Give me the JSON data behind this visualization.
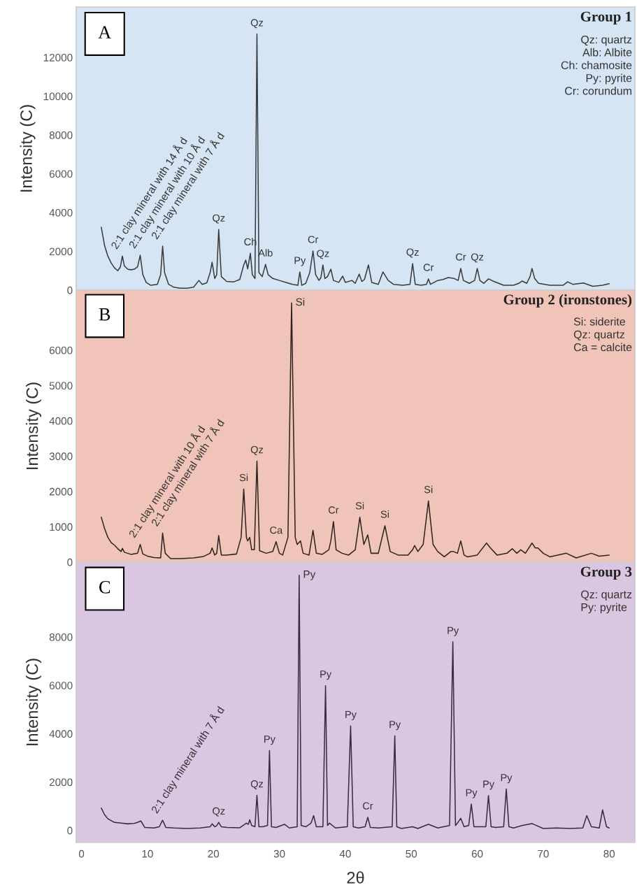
{
  "chart_data": [
    {
      "type": "line",
      "title": "Group 1",
      "ylabel": "Intensity (C)",
      "xlim": [
        -0.8,
        83.9
      ],
      "ylim": [
        0,
        14600
      ],
      "yticks": [
        0,
        2000,
        4000,
        6000,
        8000,
        10000,
        12000
      ],
      "tick_labels": "y",
      "grid": false,
      "x": [
        3.0,
        3.5,
        4,
        4.5,
        5,
        5.5,
        5.9,
        6.2,
        6.5,
        7,
        7.5,
        8,
        8.5,
        8.9,
        9.3,
        9.8,
        10.5,
        11.5,
        12,
        12.3,
        12.6,
        13.2,
        14,
        15,
        16,
        17,
        17.8,
        18.3,
        19,
        19.5,
        19.8,
        20.2,
        20.5,
        20.8,
        21.2,
        22,
        23,
        24,
        24.6,
        24.9,
        25.2,
        25.6,
        25.9,
        26.3,
        26.6,
        26.9,
        27.4,
        27.9,
        28.3,
        29,
        30,
        31,
        32,
        32.8,
        33.1,
        33.4,
        34,
        34.6,
        35.1,
        35.5,
        36,
        36.3,
        36.6,
        36.9,
        37.3,
        37.8,
        38.2,
        39,
        39.6,
        40,
        41,
        41.5,
        42.1,
        42.5,
        42.9,
        43.5,
        44,
        45,
        45.7,
        46.5,
        47.3,
        48.7,
        49.8,
        50.2,
        50.6,
        51.5,
        52.3,
        52.6,
        52.9,
        54,
        54.8,
        55.6,
        56.5,
        57.1,
        57.5,
        57.9,
        58.8,
        59.6,
        60.0,
        60.4,
        61,
        61.7,
        62.5,
        64,
        65.5,
        66.3,
        66.8,
        67.5,
        68.0,
        68.3,
        68.7,
        69.3,
        71,
        73,
        73.7,
        74.5,
        76.1,
        77.5,
        79,
        80
      ],
      "series": [
        {
          "color": "#3a3a3a",
          "values": [
            3240,
            2300,
            1750,
            1400,
            1150,
            1000,
            1200,
            1760,
            1250,
            1080,
            1050,
            1080,
            1200,
            1800,
            800,
            400,
            250,
            300,
            800,
            2270,
            900,
            300,
            150,
            100,
            100,
            150,
            500,
            300,
            380,
            900,
            1440,
            600,
            800,
            3130,
            700,
            450,
            420,
            550,
            1300,
            1550,
            1100,
            1900,
            800,
            600,
            13200,
            900,
            700,
            1330,
            800,
            600,
            500,
            400,
            300,
            250,
            940,
            250,
            350,
            900,
            2020,
            800,
            500,
            650,
            1300,
            600,
            700,
            1080,
            500,
            400,
            720,
            400,
            500,
            350,
            830,
            450,
            550,
            1300,
            400,
            300,
            940,
            500,
            300,
            250,
            300,
            1370,
            300,
            250,
            300,
            580,
            300,
            500,
            550,
            650,
            600,
            500,
            1120,
            500,
            350,
            500,
            1120,
            500,
            350,
            580,
            450,
            250,
            250,
            350,
            470,
            350,
            700,
            1120,
            600,
            350,
            250,
            250,
            430,
            300,
            370,
            200,
            250,
            330
          ]
        }
      ],
      "annotations": [
        "A",
        "Qz: quartz\nAlb: Albite\nCh: chamosite\nPy: pyrite\nCr: corundum",
        {
          "text": "2:1 clay mineral with 14 Å d",
          "x": 6.2,
          "y": 1760
        },
        {
          "text": "2:1 clay mineral with 10 Å d",
          "x": 8.9,
          "y": 1800
        },
        {
          "text": "2:1 clay mineral with 7 Å d",
          "x": 12.3,
          "y": 2270
        },
        {
          "text": "Qz",
          "x": 20.8,
          "y": 3130
        },
        {
          "text": "Ch",
          "x": 25.6,
          "y": 1900
        },
        {
          "text": "Qz",
          "x": 26.6,
          "y": 13200
        },
        {
          "text": "Alb",
          "x": 27.9,
          "y": 1330
        },
        {
          "text": "Py",
          "x": 33.1,
          "y": 940
        },
        {
          "text": "Cr",
          "x": 35.1,
          "y": 2020
        },
        {
          "text": "Qz",
          "x": 36.6,
          "y": 1300
        },
        {
          "text": "Qz",
          "x": 50.2,
          "y": 1370
        },
        {
          "text": "Cr",
          "x": 52.6,
          "y": 580
        },
        {
          "text": "Cr",
          "x": 57.5,
          "y": 1120
        },
        {
          "text": "Qz",
          "x": 60.0,
          "y": 1120
        }
      ]
    },
    {
      "type": "line",
      "title": "Group 2 (ironstones)",
      "ylabel": "Intensity (C)",
      "xlim": [
        -0.8,
        83.9
      ],
      "ylim": [
        0,
        7700
      ],
      "yticks": [
        0,
        1000,
        2000,
        3000,
        4000,
        5000,
        6000
      ],
      "tick_labels": "y",
      "grid": false,
      "x": [
        3.0,
        3.5,
        4,
        4.5,
        5,
        5.5,
        6,
        6.2,
        6.5,
        7.5,
        8.5,
        8.9,
        9.3,
        10,
        11,
        12,
        12.3,
        12.7,
        13.5,
        15,
        17,
        18.5,
        19.5,
        19.8,
        20.2,
        20.5,
        20.8,
        21.2,
        22,
        23.5,
        24.2,
        24.6,
        25,
        25.2,
        25.5,
        25.8,
        26.2,
        26.6,
        27,
        28,
        29,
        29.5,
        30,
        30.5,
        31.3,
        31.85,
        32.4,
        32.7,
        33.2,
        33.6,
        34.5,
        35.1,
        35.6,
        36.5,
        37.5,
        37.8,
        38.2,
        38.6,
        39.5,
        40.5,
        41.5,
        42.2,
        42.8,
        43.4,
        43.9,
        45,
        46.0,
        46.8,
        48,
        49.5,
        50.2,
        50.5,
        51,
        51.8,
        52.6,
        53.3,
        54,
        55,
        56,
        56.4,
        57,
        57.5,
        58,
        58.5,
        60,
        61.4,
        62,
        63,
        64.5,
        65.3,
        66,
        66.6,
        67.3,
        68.3,
        68.8,
        69.2,
        70,
        71,
        73.5,
        75,
        77.3,
        78.5,
        80
      ],
      "series": [
        {
          "color": "#2e2420",
          "values": [
            1270,
            950,
            700,
            550,
            480,
            380,
            300,
            390,
            280,
            220,
            250,
            500,
            230,
            170,
            130,
            120,
            820,
            250,
            100,
            100,
            120,
            160,
            250,
            400,
            200,
            250,
            750,
            200,
            200,
            230,
            700,
            2070,
            700,
            600,
            700,
            350,
            350,
            2860,
            320,
            250,
            300,
            580,
            250,
            200,
            700,
            7340,
            700,
            500,
            600,
            250,
            200,
            900,
            250,
            220,
            350,
            600,
            1150,
            350,
            250,
            200,
            350,
            1270,
            500,
            770,
            250,
            250,
            1030,
            300,
            200,
            200,
            350,
            470,
            300,
            500,
            1730,
            500,
            300,
            150,
            300,
            300,
            250,
            600,
            200,
            150,
            200,
            540,
            400,
            200,
            250,
            380,
            250,
            350,
            250,
            540,
            400,
            400,
            250,
            150,
            250,
            120,
            250,
            170,
            200
          ]
        }
      ],
      "annotations": [
        "B",
        "Si: siderite\nQz: quartz\nCa = calcite",
        {
          "text": "2:1 clay mineral with 10 Å d",
          "x": 8.9,
          "y": 500
        },
        {
          "text": "2:1 clay mineral with 7 Å d",
          "x": 12.3,
          "y": 820
        },
        {
          "text": "Si",
          "x": 24.6,
          "y": 2070
        },
        {
          "text": "Qz",
          "x": 26.6,
          "y": 2860
        },
        {
          "text": "Ca",
          "x": 29.5,
          "y": 580
        },
        {
          "text": "Si",
          "x": 31.85,
          "y": 7340
        },
        {
          "text": "Cr",
          "x": 38.2,
          "y": 1150
        },
        {
          "text": "Si",
          "x": 42.2,
          "y": 1270
        },
        {
          "text": "Si",
          "x": 46.0,
          "y": 1030
        },
        {
          "text": "Si",
          "x": 52.6,
          "y": 1730
        }
      ]
    },
    {
      "type": "line",
      "title": "Group 3",
      "xlabel": "2θ",
      "ylabel": "Intensity (C)",
      "xlim": [
        -0.8,
        83.9
      ],
      "ylim": [
        -500,
        11100
      ],
      "xticks": [
        0,
        10,
        20,
        30,
        40,
        50,
        60,
        70,
        80
      ],
      "yticks": [
        0,
        2000,
        4000,
        6000,
        8000
      ],
      "grid": false,
      "x": [
        3.0,
        3.5,
        4,
        5,
        6,
        7,
        8,
        8.5,
        9,
        9.6,
        11,
        11.8,
        12.3,
        12.8,
        14,
        16,
        18,
        19.5,
        19.8,
        20.2,
        20.5,
        20.8,
        21.2,
        22,
        24,
        25,
        25.3,
        25.5,
        25.8,
        26.3,
        26.6,
        26.9,
        27.5,
        28.2,
        28.5,
        28.8,
        29.5,
        30.8,
        31.5,
        32.7,
        33.0,
        33.3,
        34,
        34.8,
        35.2,
        35.6,
        36.6,
        37.0,
        37.3,
        37.6,
        38.5,
        40.3,
        40.8,
        41.2,
        42,
        43,
        43.4,
        43.8,
        45,
        47.1,
        47.5,
        47.8,
        48.5,
        50.2,
        51,
        52.6,
        54,
        55.8,
        56.3,
        56.7,
        57,
        57.5,
        58,
        58.7,
        59.1,
        59.5,
        60,
        61.3,
        61.7,
        62.1,
        62.8,
        64.0,
        64.4,
        64.8,
        65.5,
        66.8,
        68.3,
        70,
        72,
        74,
        76,
        76.6,
        77.3,
        78.5,
        79.0,
        79.6,
        80
      ],
      "series": [
        {
          "color": "#3a2a3a",
          "values": [
            920,
            650,
            480,
            330,
            300,
            270,
            290,
            330,
            390,
            120,
            100,
            150,
            420,
            120,
            100,
            80,
            100,
            150,
            270,
            150,
            200,
            330,
            150,
            120,
            110,
            300,
            250,
            440,
            200,
            150,
            1450,
            150,
            150,
            200,
            3300,
            150,
            120,
            250,
            100,
            150,
            10560,
            200,
            150,
            300,
            610,
            150,
            150,
            5990,
            200,
            300,
            100,
            150,
            4320,
            150,
            100,
            150,
            540,
            120,
            100,
            150,
            3910,
            150,
            80,
            150,
            80,
            250,
            100,
            200,
            7800,
            200,
            300,
            500,
            150,
            200,
            1090,
            150,
            150,
            150,
            1440,
            150,
            120,
            150,
            1710,
            150,
            100,
            200,
            280,
            80,
            100,
            80,
            100,
            610,
            150,
            100,
            850,
            150,
            100
          ]
        }
      ],
      "annotations": [
        "C",
        "Qz: quartz\nPy: pyrite",
        {
          "text": "2:1 clay mineral with 7 Å d",
          "x": 12.3,
          "y": 420
        },
        {
          "text": "Qz",
          "x": 20.8,
          "y": 330
        },
        {
          "text": "Qz",
          "x": 26.6,
          "y": 1450
        },
        {
          "text": "Py",
          "x": 28.5,
          "y": 3300
        },
        {
          "text": "Py",
          "x": 33.0,
          "y": 10560
        },
        {
          "text": "Py",
          "x": 37.0,
          "y": 5990
        },
        {
          "text": "Py",
          "x": 40.8,
          "y": 4320
        },
        {
          "text": "Cr",
          "x": 43.4,
          "y": 540
        },
        {
          "text": "Py",
          "x": 47.5,
          "y": 3910
        },
        {
          "text": "Py",
          "x": 56.3,
          "y": 7800
        },
        {
          "text": "Py",
          "x": 59.1,
          "y": 1090
        },
        {
          "text": "Py",
          "x": 61.7,
          "y": 1440
        },
        {
          "text": "Py",
          "x": 64.4,
          "y": 1710
        }
      ]
    }
  ]
}
